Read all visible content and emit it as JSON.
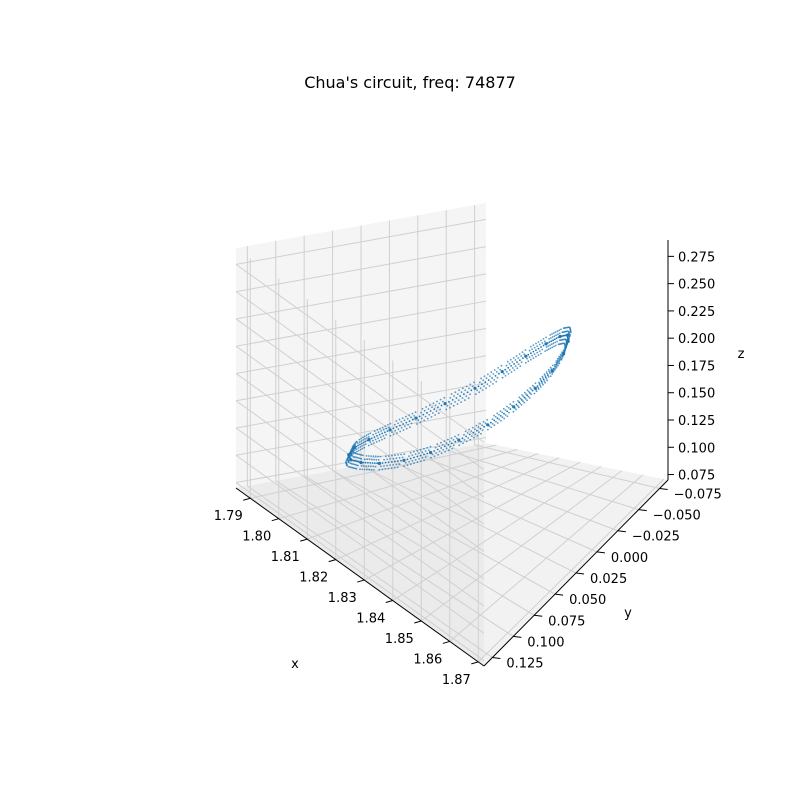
{
  "chart_data": {
    "type": "scatter",
    "projection": "3d",
    "title": "Chua's circuit, freq: 74877",
    "xlabel": "x",
    "ylabel": "y",
    "zlabel": "z",
    "xlim": [
      1.785,
      1.872
    ],
    "ylim": [
      -0.085,
      0.135
    ],
    "zlim": [
      0.07,
      0.29
    ],
    "xticks": [
      1.79,
      1.8,
      1.81,
      1.82,
      1.83,
      1.84,
      1.85,
      1.86,
      1.87
    ],
    "xtick_labels": [
      "1.79",
      "1.80",
      "1.81",
      "1.82",
      "1.83",
      "1.84",
      "1.85",
      "1.86",
      "1.87"
    ],
    "yticks": [
      -0.075,
      -0.05,
      -0.025,
      0.0,
      0.025,
      0.05,
      0.075,
      0.1,
      0.125
    ],
    "ytick_labels": [
      "−0.075",
      "−0.050",
      "−0.025",
      "0.000",
      "0.025",
      "0.050",
      "0.075",
      "0.100",
      "0.125"
    ],
    "zticks": [
      0.075,
      0.1,
      0.125,
      0.15,
      0.175,
      0.2,
      0.225,
      0.25,
      0.275
    ],
    "ztick_labels": [
      "0.075",
      "0.100",
      "0.125",
      "0.150",
      "0.175",
      "0.200",
      "0.225",
      "0.250",
      "0.275"
    ],
    "grid": true,
    "marker_color": "#1f77b4",
    "series": [
      {
        "trajectory": "closed loop (limit cycle)",
        "points": [
          {
            "x": 1.85,
            "y": 0.01,
            "z": 0.205
          },
          {
            "x": 1.849,
            "y": 0.031,
            "z": 0.2
          },
          {
            "x": 1.846,
            "y": 0.051,
            "z": 0.192
          },
          {
            "x": 1.841,
            "y": 0.068,
            "z": 0.181
          },
          {
            "x": 1.835,
            "y": 0.081,
            "z": 0.168
          },
          {
            "x": 1.828,
            "y": 0.089,
            "z": 0.154
          },
          {
            "x": 1.82,
            "y": 0.092,
            "z": 0.14
          },
          {
            "x": 1.812,
            "y": 0.089,
            "z": 0.127
          },
          {
            "x": 1.805,
            "y": 0.081,
            "z": 0.116
          },
          {
            "x": 1.799,
            "y": 0.068,
            "z": 0.108
          },
          {
            "x": 1.794,
            "y": 0.051,
            "z": 0.103
          },
          {
            "x": 1.791,
            "y": 0.031,
            "z": 0.102
          },
          {
            "x": 1.79,
            "y": 0.01,
            "z": 0.105
          },
          {
            "x": 1.791,
            "y": -0.011,
            "z": 0.112
          },
          {
            "x": 1.794,
            "y": -0.031,
            "z": 0.123
          },
          {
            "x": 1.799,
            "y": -0.048,
            "z": 0.136
          },
          {
            "x": 1.805,
            "y": -0.061,
            "z": 0.151
          },
          {
            "x": 1.812,
            "y": -0.069,
            "z": 0.166
          },
          {
            "x": 1.82,
            "y": -0.072,
            "z": 0.18
          },
          {
            "x": 1.828,
            "y": -0.069,
            "z": 0.192
          },
          {
            "x": 1.835,
            "y": -0.061,
            "z": 0.201
          },
          {
            "x": 1.841,
            "y": -0.048,
            "z": 0.206
          },
          {
            "x": 1.846,
            "y": -0.031,
            "z": 0.208
          },
          {
            "x": 1.849,
            "y": -0.011,
            "z": 0.207
          }
        ]
      }
    ]
  }
}
